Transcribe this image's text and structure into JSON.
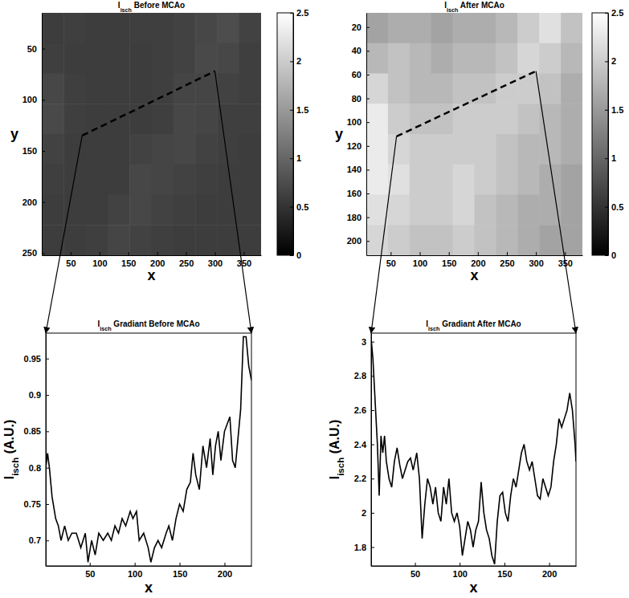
{
  "chart_data": [
    {
      "type": "heatmap",
      "title": [
        "I",
        "isch",
        " Before MCAo"
      ],
      "xlabel": "x",
      "ylabel": "y",
      "xlim": [
        0,
        380
      ],
      "ylim": [
        15,
        252
      ],
      "xticks": [
        50,
        100,
        150,
        200,
        250,
        300,
        350
      ],
      "yticks": [
        50,
        100,
        150,
        200,
        250
      ],
      "cells": [
        [
          0.6,
          0.62,
          0.6,
          0.6,
          0.62,
          0.62,
          0.65,
          0.7,
          0.75,
          0.65
        ],
        [
          0.62,
          0.6,
          0.6,
          0.6,
          0.6,
          0.62,
          0.65,
          0.72,
          0.7,
          0.62
        ],
        [
          0.7,
          0.62,
          0.6,
          0.6,
          0.6,
          0.62,
          0.68,
          0.68,
          0.65,
          0.62
        ],
        [
          0.72,
          0.62,
          0.6,
          0.6,
          0.6,
          0.62,
          0.7,
          0.68,
          0.62,
          0.62
        ],
        [
          0.65,
          0.6,
          0.6,
          0.6,
          0.65,
          0.68,
          0.7,
          0.65,
          0.62,
          0.6
        ],
        [
          0.62,
          0.6,
          0.6,
          0.6,
          0.7,
          0.68,
          0.65,
          0.62,
          0.6,
          0.6
        ],
        [
          0.6,
          0.6,
          0.6,
          0.65,
          0.7,
          0.65,
          0.62,
          0.6,
          0.6,
          0.6
        ],
        [
          0.6,
          0.6,
          0.62,
          0.68,
          0.65,
          0.62,
          0.6,
          0.6,
          0.6,
          0.6
        ]
      ],
      "colorbar": {
        "range": [
          0,
          2.5
        ],
        "ticks": [
          0,
          0.5,
          1,
          1.5,
          2,
          2.5
        ]
      },
      "profile": {
        "x": [
          70,
          300
        ],
        "y": [
          135,
          72
        ],
        "line_style": "dashed"
      }
    },
    {
      "type": "heatmap",
      "title": [
        "I",
        "isch",
        " After MCAo"
      ],
      "xlabel": "x",
      "ylabel": "y",
      "xlim": [
        8,
        380
      ],
      "ylim": [
        8,
        212
      ],
      "xticks": [
        50,
        100,
        150,
        200,
        250,
        300,
        350
      ],
      "yticks": [
        20,
        40,
        60,
        80,
        100,
        120,
        140,
        160,
        180,
        200
      ],
      "cells": [
        [
          1.6,
          1.7,
          1.7,
          1.6,
          1.7,
          1.7,
          1.8,
          2.0,
          2.2,
          1.9
        ],
        [
          1.8,
          1.9,
          1.8,
          1.7,
          1.8,
          1.8,
          1.9,
          2.1,
          2.0,
          1.8
        ],
        [
          2.1,
          1.9,
          1.8,
          1.8,
          1.9,
          1.9,
          2.0,
          2.0,
          1.9,
          1.7
        ],
        [
          2.3,
          2.0,
          1.9,
          1.9,
          2.0,
          2.0,
          2.0,
          1.9,
          1.8,
          1.7
        ],
        [
          2.3,
          2.1,
          2.0,
          2.0,
          2.0,
          2.0,
          1.9,
          1.8,
          1.8,
          1.7
        ],
        [
          2.3,
          2.2,
          2.0,
          2.0,
          2.1,
          2.0,
          1.9,
          1.8,
          1.7,
          1.6
        ],
        [
          2.2,
          2.1,
          2.0,
          2.0,
          2.1,
          1.9,
          1.8,
          1.7,
          1.7,
          1.6
        ],
        [
          2.1,
          2.0,
          1.9,
          1.9,
          2.0,
          1.9,
          1.8,
          1.7,
          1.6,
          1.6
        ]
      ],
      "colorbar": {
        "range": [
          0,
          2.5
        ],
        "ticks": [
          0,
          0.5,
          1,
          1.5,
          2,
          2.5
        ]
      },
      "profile": {
        "x": [
          60,
          300
        ],
        "y": [
          112,
          57
        ],
        "line_style": "dashed"
      }
    },
    {
      "type": "line",
      "title": [
        "I",
        "isch",
        " Gradiant Before MCAo"
      ],
      "xlabel": "x",
      "ylabel": [
        "I",
        "isch",
        " (A.U.)"
      ],
      "xlim": [
        1,
        230
      ],
      "ylim": [
        0.665,
        0.985
      ],
      "xticks": [
        50,
        100,
        150,
        200
      ],
      "yticks": [
        0.7,
        0.75,
        0.8,
        0.85,
        0.9,
        0.95
      ],
      "color": "#000000",
      "x": [
        1,
        3,
        5,
        8,
        12,
        15,
        18,
        22,
        26,
        30,
        35,
        40,
        45,
        48,
        52,
        56,
        60,
        65,
        70,
        74,
        78,
        82,
        86,
        90,
        95,
        98,
        102,
        105,
        110,
        115,
        118,
        122,
        126,
        130,
        135,
        138,
        142,
        146,
        150,
        154,
        158,
        162,
        165,
        168,
        172,
        176,
        180,
        184,
        187,
        190,
        193,
        196,
        200,
        203,
        206,
        209,
        212,
        215,
        218,
        221,
        224,
        227,
        230
      ],
      "values": [
        0.8,
        0.82,
        0.8,
        0.76,
        0.73,
        0.72,
        0.7,
        0.72,
        0.7,
        0.71,
        0.71,
        0.69,
        0.71,
        0.67,
        0.7,
        0.68,
        0.71,
        0.7,
        0.71,
        0.7,
        0.72,
        0.71,
        0.73,
        0.72,
        0.74,
        0.73,
        0.74,
        0.7,
        0.71,
        0.69,
        0.67,
        0.69,
        0.7,
        0.69,
        0.71,
        0.72,
        0.7,
        0.73,
        0.75,
        0.74,
        0.77,
        0.78,
        0.82,
        0.79,
        0.77,
        0.83,
        0.8,
        0.84,
        0.79,
        0.83,
        0.85,
        0.81,
        0.85,
        0.86,
        0.87,
        0.81,
        0.8,
        0.84,
        0.88,
        0.98,
        0.98,
        0.94,
        0.92
      ]
    },
    {
      "type": "line",
      "title": [
        "I",
        "isch",
        " Gradiant After MCAo"
      ],
      "xlabel": "x",
      "ylabel": [
        "I",
        "isch",
        " (A.U.)"
      ],
      "xlim": [
        1,
        230
      ],
      "ylim": [
        1.69,
        3.05
      ],
      "xticks": [
        50,
        100,
        150,
        200
      ],
      "yticks": [
        1.8,
        2,
        2.2,
        2.4,
        2.6,
        2.8,
        3
      ],
      "color": "#000000",
      "x": [
        1,
        3,
        5,
        8,
        10,
        12,
        14,
        16,
        18,
        21,
        24,
        27,
        30,
        33,
        36,
        39,
        42,
        45,
        48,
        52,
        55,
        58,
        61,
        64,
        67,
        70,
        73,
        76,
        79,
        82,
        85,
        88,
        91,
        94,
        97,
        100,
        103,
        106,
        109,
        112,
        115,
        118,
        121,
        124,
        127,
        130,
        133,
        136,
        139,
        142,
        145,
        148,
        151,
        154,
        157,
        160,
        163,
        166,
        169,
        172,
        175,
        178,
        181,
        184,
        187,
        190,
        193,
        196,
        199,
        202,
        205,
        208,
        211,
        214,
        217,
        220,
        223,
        226,
        229,
        230
      ],
      "values": [
        3.02,
        2.9,
        2.7,
        2.4,
        2.1,
        2.45,
        2.35,
        2.45,
        2.3,
        2.2,
        2.15,
        2.3,
        2.38,
        2.28,
        2.2,
        2.25,
        2.3,
        2.32,
        2.25,
        2.35,
        2.2,
        1.85,
        2.05,
        2.2,
        2.15,
        2.05,
        2.15,
        2.0,
        1.95,
        2.15,
        2.05,
        2.2,
        2.0,
        1.95,
        2.0,
        1.92,
        1.75,
        1.85,
        1.95,
        1.9,
        1.8,
        1.9,
        1.95,
        2.18,
        2.0,
        1.9,
        1.85,
        1.75,
        1.7,
        1.95,
        2.1,
        2.12,
        2.0,
        1.95,
        2.1,
        2.2,
        2.15,
        2.25,
        2.35,
        2.4,
        2.3,
        2.25,
        2.3,
        2.2,
        2.1,
        2.08,
        2.2,
        2.15,
        2.1,
        2.15,
        2.3,
        2.4,
        2.55,
        2.5,
        2.55,
        2.6,
        2.7,
        2.6,
        2.4,
        2.3
      ]
    }
  ]
}
